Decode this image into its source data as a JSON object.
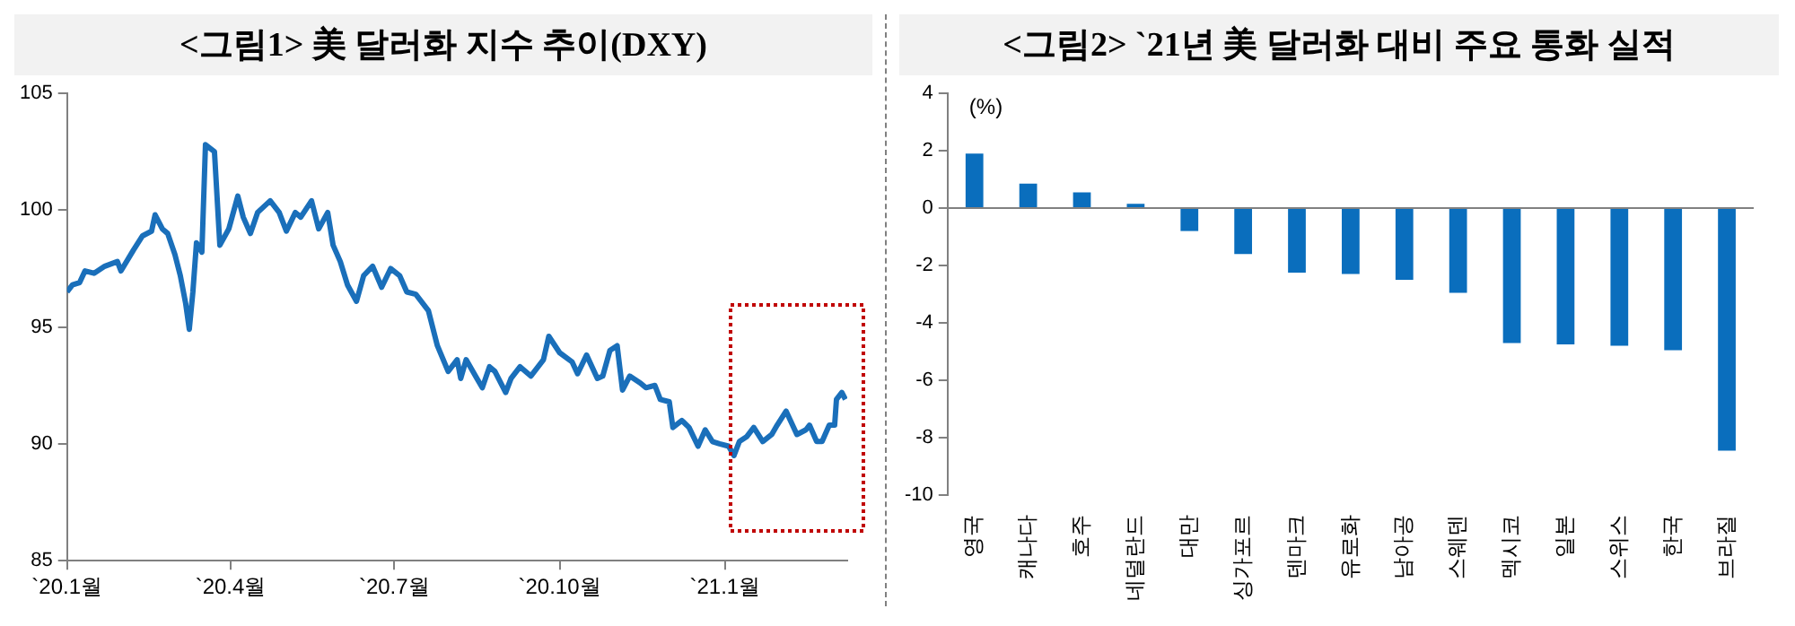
{
  "chart_data": [
    {
      "type": "line",
      "title": "<그림1> 美 달러화 지수 추이(DXY)",
      "x": [
        "2020-01-01",
        "2020-01-04",
        "2020-01-08",
        "2020-01-11",
        "2020-01-16",
        "2020-01-22",
        "2020-01-29",
        "2020-01-31",
        "2020-02-07",
        "2020-02-12",
        "2020-02-17",
        "2020-02-19",
        "2020-02-23",
        "2020-02-26",
        "2020-03-01",
        "2020-03-04",
        "2020-03-07",
        "2020-03-09",
        "2020-03-11",
        "2020-03-13",
        "2020-03-16",
        "2020-03-18",
        "2020-03-23",
        "2020-03-26",
        "2020-03-31",
        "2020-04-05",
        "2020-04-08",
        "2020-04-12",
        "2020-04-16",
        "2020-04-23",
        "2020-04-28",
        "2020-05-02",
        "2020-05-07",
        "2020-05-10",
        "2020-05-16",
        "2020-05-20",
        "2020-05-25",
        "2020-05-28",
        "2020-06-01",
        "2020-06-05",
        "2020-06-10",
        "2020-06-14",
        "2020-06-19",
        "2020-06-24",
        "2020-06-29",
        "2020-07-04",
        "2020-07-08",
        "2020-07-13",
        "2020-07-20",
        "2020-07-25",
        "2020-07-31",
        "2020-08-05",
        "2020-08-07",
        "2020-08-10",
        "2020-08-16",
        "2020-08-19",
        "2020-08-23",
        "2020-08-26",
        "2020-09-01",
        "2020-09-04",
        "2020-09-09",
        "2020-09-15",
        "2020-09-22",
        "2020-09-25",
        "2020-10-01",
        "2020-10-08",
        "2020-10-11",
        "2020-10-16",
        "2020-10-22",
        "2020-10-25",
        "2020-10-29",
        "2020-11-02",
        "2020-11-05",
        "2020-11-09",
        "2020-11-15",
        "2020-11-18",
        "2020-11-23",
        "2020-11-26",
        "2020-12-01",
        "2020-12-03",
        "2020-12-08",
        "2020-12-12",
        "2020-12-17",
        "2020-12-21",
        "2020-12-25",
        "2020-12-29",
        "2021-01-03",
        "2021-01-06",
        "2021-01-09",
        "2021-01-13",
        "2021-01-17",
        "2021-01-22",
        "2021-01-27",
        "2021-01-30",
        "2021-02-04",
        "2021-02-07",
        "2021-02-10",
        "2021-02-15",
        "2021-02-17",
        "2021-02-21",
        "2021-02-24",
        "2021-02-28",
        "2021-03-03",
        "2021-03-04",
        "2021-03-07",
        "2021-03-09"
      ],
      "series": [
        {
          "color": "#1a6fba",
          "values": [
            96.5,
            96.8,
            96.9,
            97.4,
            97.3,
            97.6,
            97.8,
            97.4,
            98.3,
            98.9,
            99.1,
            99.8,
            99.2,
            99.0,
            98.1,
            97.2,
            96.0,
            94.9,
            96.5,
            98.6,
            98.2,
            102.8,
            102.5,
            98.5,
            99.2,
            100.6,
            99.7,
            99.0,
            99.9,
            100.4,
            99.9,
            99.1,
            99.9,
            99.7,
            100.4,
            99.2,
            99.9,
            98.5,
            97.8,
            96.8,
            96.1,
            97.2,
            97.6,
            96.7,
            97.5,
            97.2,
            96.5,
            96.4,
            95.7,
            94.2,
            93.1,
            93.6,
            92.8,
            93.6,
            92.8,
            92.4,
            93.3,
            93.1,
            92.2,
            92.8,
            93.3,
            92.9,
            93.6,
            94.6,
            93.9,
            93.5,
            93.0,
            93.8,
            92.8,
            92.9,
            94.0,
            94.2,
            92.3,
            92.9,
            92.6,
            92.4,
            92.5,
            91.9,
            91.8,
            90.7,
            91.0,
            90.7,
            89.9,
            90.6,
            90.1,
            90.0,
            89.9,
            89.5,
            90.1,
            90.3,
            90.7,
            90.1,
            90.4,
            90.8,
            91.4,
            90.9,
            90.4,
            90.6,
            90.8,
            90.1,
            90.1,
            90.8,
            90.8,
            91.9,
            92.2,
            91.9
          ]
        }
      ],
      "xlim": [
        "2020-01-01",
        "2021-03-10"
      ],
      "xticks": [
        {
          "value": "2020-01-01",
          "label": "`20.1월"
        },
        {
          "value": "2020-04-01",
          "label": "`20.4월"
        },
        {
          "value": "2020-07-01",
          "label": "`20.7월"
        },
        {
          "value": "2020-10-01",
          "label": "`20.10월"
        },
        {
          "value": "2021-01-01",
          "label": "`21.1월"
        }
      ],
      "ylim": [
        85,
        105
      ],
      "yticks": [
        85,
        90,
        95,
        100,
        105
      ],
      "grid": false,
      "legend": false,
      "marker": "none",
      "line_style": "solid"
    },
    {
      "type": "bar",
      "title": "<그림2> `21년 美 달러화 대비 주요 통화 실적",
      "ylabel": "(%)",
      "categories": [
        "영국",
        "캐나다",
        "호주",
        "네덜란드",
        "대만",
        "싱가포르",
        "덴마크",
        "유로화",
        "남아공",
        "스웨덴",
        "멕시코",
        "일본",
        "스위스",
        "한국",
        "브라질"
      ],
      "values": [
        1.9,
        0.85,
        0.55,
        0.15,
        -0.8,
        -1.6,
        -2.25,
        -2.3,
        -2.5,
        -2.95,
        -4.7,
        -4.75,
        -4.8,
        -4.95,
        -8.45
      ],
      "color": "#0a6ebd",
      "ylim": [
        -10,
        4
      ],
      "yticks": [
        -10,
        -8,
        -6,
        -4,
        -2,
        0,
        2,
        4
      ],
      "ref_lines": [
        {
          "axis": "y",
          "value": 0,
          "color": "#808080"
        }
      ],
      "grid": false,
      "legend": false
    }
  ]
}
